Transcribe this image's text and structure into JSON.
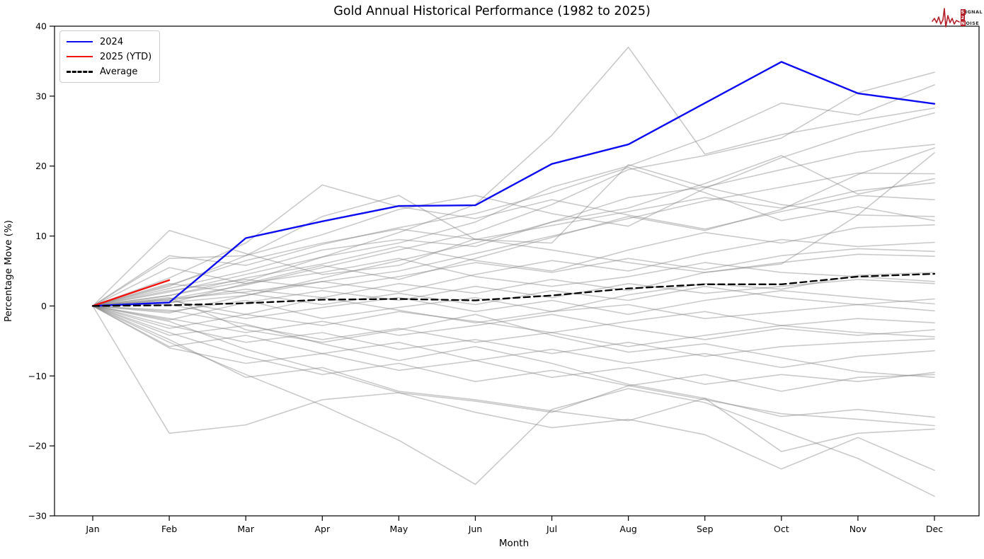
{
  "header": {
    "logo": {
      "line1": "SIGNAL",
      "line2": "2",
      "line3": "NOISE"
    }
  },
  "chart_data": {
    "type": "line",
    "title": "Gold Annual Historical Performance (1982 to 2025)",
    "xlabel": "Month",
    "ylabel": "Percentage Move (%)",
    "x": [
      "Jan",
      "Feb",
      "Mar",
      "Apr",
      "May",
      "Jun",
      "Jul",
      "Aug",
      "Sep",
      "Oct",
      "Nov",
      "Dec"
    ],
    "ylim": [
      -30,
      40
    ],
    "yticks": [
      40,
      30,
      20,
      10,
      0,
      -10,
      -20,
      -30
    ],
    "grid": false,
    "legend": {
      "position": "upper left",
      "entries": [
        {
          "label": "2024",
          "color": "#0d0df0",
          "style": "solid"
        },
        {
          "label": "2025 (YTD)",
          "color": "#f01410",
          "style": "solid"
        },
        {
          "label": "Average",
          "color": "#000000",
          "style": "dashed"
        }
      ]
    },
    "series": [
      {
        "name": "2024",
        "color": "#0d0df0",
        "style": "solid",
        "width": 2.4,
        "values": [
          0,
          0.5,
          9.7,
          12.1,
          14.3,
          14.4,
          20.3,
          23.1,
          29.0,
          34.9,
          30.4,
          28.9
        ]
      },
      {
        "name": "2025 (YTD)",
        "color": "#f01410",
        "style": "solid",
        "width": 2.4,
        "values": [
          0,
          3.7
        ]
      },
      {
        "name": "Average",
        "color": "#000000",
        "style": "dashed",
        "width": 2.3,
        "values": [
          0,
          0.1,
          0.4,
          0.9,
          1.0,
          0.8,
          1.5,
          2.5,
          3.1,
          3.1,
          4.2,
          4.6
        ]
      }
    ],
    "background_series_note": "historical years 1982-2023, values estimated from chart",
    "background_color": "#808080",
    "background_opacity": 0.42,
    "background_width": 1.6,
    "background_series": [
      {
        "values": [
          0,
          2,
          4.5,
          7,
          9,
          12,
          17,
          20,
          24,
          29,
          27.3,
          31.6
        ]
      },
      {
        "values": [
          0,
          1,
          3,
          5.5,
          8,
          10.5,
          14.5,
          19.5,
          21.5,
          24,
          30.5,
          33.4
        ]
      },
      {
        "values": [
          0,
          1.5,
          3.5,
          7,
          10.5,
          14.5,
          24.4,
          37,
          21.7,
          24.5,
          26.5,
          28.3
        ]
      },
      {
        "values": [
          0,
          2.5,
          5,
          8,
          9.5,
          8.5,
          12,
          15.5,
          17,
          19.5,
          22,
          23.1
        ]
      },
      {
        "values": [
          0,
          10.8,
          7.5,
          4.5,
          5.8,
          9.6,
          8,
          6.2,
          4.8,
          6,
          13,
          21.9
        ]
      },
      {
        "values": [
          0,
          1,
          2,
          3.5,
          5,
          7.5,
          10,
          12.5,
          15,
          17,
          19,
          18.9
        ]
      },
      {
        "values": [
          0,
          0.5,
          1.5,
          4,
          6.5,
          9,
          12,
          14,
          17.5,
          21.5,
          16,
          18.2
        ]
      },
      {
        "values": [
          0,
          3,
          6.5,
          9,
          11,
          9.5,
          11.5,
          13.5,
          15.5,
          14,
          16.5,
          17.6
        ]
      },
      {
        "values": [
          0,
          4,
          9,
          17.3,
          14.2,
          12.5,
          15.2,
          13,
          11,
          13.5,
          15.8,
          15.2
        ]
      },
      {
        "values": [
          0,
          6.8,
          7.2,
          12.8,
          15.8,
          9.5,
          9.0,
          20.2,
          17.0,
          14.5,
          13.0,
          12.8
        ]
      },
      {
        "values": [
          0,
          1.5,
          4,
          6,
          8.5,
          6.5,
          5,
          8,
          10.5,
          9,
          11.2,
          11.6
        ]
      },
      {
        "values": [
          0,
          -1,
          1.5,
          3.5,
          2,
          4.5,
          6.5,
          5,
          7.5,
          9.5,
          8.5,
          9.1
        ]
      },
      {
        "values": [
          0,
          2.2,
          3.8,
          2.5,
          4.2,
          6.2,
          4.8,
          6.8,
          5.2,
          7.2,
          8.2,
          7.8
        ]
      },
      {
        "values": [
          0,
          0.8,
          -1.2,
          1.2,
          3.2,
          1.8,
          3.8,
          2.2,
          4.8,
          6.2,
          7.4,
          7.1
        ]
      },
      {
        "values": [
          0,
          5.5,
          3.2,
          4.8,
          6.8,
          4.2,
          2.8,
          4.2,
          6.2,
          4.8,
          4.2,
          3.5
        ]
      },
      {
        "values": [
          0,
          -2,
          0.5,
          2.2,
          0.8,
          2.8,
          1.2,
          3.2,
          1.8,
          2.8,
          3.8,
          3.2
        ]
      },
      {
        "values": [
          0,
          3.2,
          1.8,
          0.2,
          1.8,
          0.2,
          2.2,
          0.8,
          2.8,
          1.2,
          0.2,
          1.0
        ]
      },
      {
        "values": [
          0,
          0.2,
          -1.8,
          -0.2,
          1.2,
          -0.8,
          0.8,
          -1.2,
          0.8,
          2.2,
          1.2,
          0.3
        ]
      },
      {
        "values": [
          0,
          -0.8,
          0.8,
          -1.8,
          -0.2,
          1.2,
          -0.8,
          0.2,
          -1.8,
          -0.8,
          0.2,
          -0.7
        ]
      },
      {
        "values": [
          0,
          -3.2,
          -1.2,
          -2.8,
          -0.8,
          -2.2,
          -3.8,
          -2.2,
          -0.8,
          -2.8,
          -1.8,
          -2.4
        ]
      },
      {
        "values": [
          0,
          -1.8,
          -3.8,
          -2.2,
          -4.2,
          -2.8,
          -1.2,
          -3.2,
          -4.8,
          -3.2,
          -4.2,
          -3.4
        ]
      },
      {
        "values": [
          0,
          -4.2,
          -2.8,
          -4.8,
          -3.2,
          -5.2,
          -3.8,
          -5.8,
          -4.2,
          -2.8,
          -3.8,
          -4.4
        ]
      },
      {
        "values": [
          0,
          -2.8,
          -5.2,
          -3.8,
          -6.2,
          -4.8,
          -6.8,
          -5.2,
          -7.2,
          -5.8,
          -5.2,
          -4.7
        ]
      },
      {
        "values": [
          0,
          -5.8,
          -4.2,
          -6.8,
          -5.2,
          -7.8,
          -6.2,
          -8.2,
          -6.8,
          -8.8,
          -7.2,
          -6.4
        ]
      },
      {
        "values": [
          0,
          -6,
          -8.2,
          -6.8,
          -9.2,
          -7.8,
          -10.2,
          -8.8,
          -11.2,
          -9.8,
          -10.8,
          -9.5
        ]
      },
      {
        "values": [
          0,
          -3.8,
          -7.2,
          -9.8,
          -8.2,
          -10.8,
          -9.2,
          -11.4,
          -9.8,
          -12.2,
          -10.2,
          -9.8
        ]
      },
      {
        "values": [
          0,
          -4.8,
          -10.2,
          -8.8,
          -12.2,
          -13.4,
          -15.0,
          -16.4,
          -13.2,
          -15.8,
          -14.8,
          -15.9
        ]
      },
      {
        "values": [
          0,
          -18.2,
          -17.0,
          -13.4,
          -12.4,
          -13.6,
          -15.2,
          -11.4,
          -13.4,
          -15.4,
          -16.2,
          -17.1
        ]
      },
      {
        "values": [
          0,
          -2.2,
          -6.2,
          -9.2,
          -12.4,
          -15.2,
          -17.4,
          -16.2,
          -18.4,
          -23.3,
          -18.8,
          -23.5
        ]
      },
      {
        "values": [
          0,
          -5.2,
          -9.8,
          -14.2,
          -19.2,
          -25.5,
          -14.8,
          -11.8,
          -13.8,
          -17.8,
          -21.8,
          -27.2
        ]
      },
      {
        "values": [
          0,
          2.8,
          7.2,
          10.2,
          13.8,
          15.8,
          13.2,
          11.4,
          16.8,
          21.2,
          24.8,
          27.6
        ]
      },
      {
        "values": [
          0,
          0.4,
          3.2,
          5.8,
          3.8,
          6.8,
          9.8,
          12.8,
          10.8,
          13.8,
          18.8,
          22.6
        ]
      },
      {
        "values": [
          0,
          -0.6,
          -2.6,
          -5.4,
          -7.8,
          -5.8,
          -8.2,
          -11.2,
          -13.2,
          -20.8,
          -18.2,
          -17.6
        ]
      },
      {
        "values": [
          0,
          1.2,
          -3.4,
          -5.2,
          -3.4,
          -1.2,
          -4.2,
          -6.6,
          -5.4,
          -7.4,
          -9.4,
          -10.2
        ]
      },
      {
        "values": [
          0,
          7.2,
          5.8,
          8.8,
          11.2,
          13.2,
          16.2,
          19.8,
          16.2,
          12.2,
          14.2,
          12.2
        ]
      },
      {
        "values": [
          0,
          0.8,
          2.4,
          1.2,
          -0.6,
          -2.4,
          -0.8,
          1.6,
          3.2,
          2.4,
          4.4,
          4.8
        ]
      }
    ]
  }
}
